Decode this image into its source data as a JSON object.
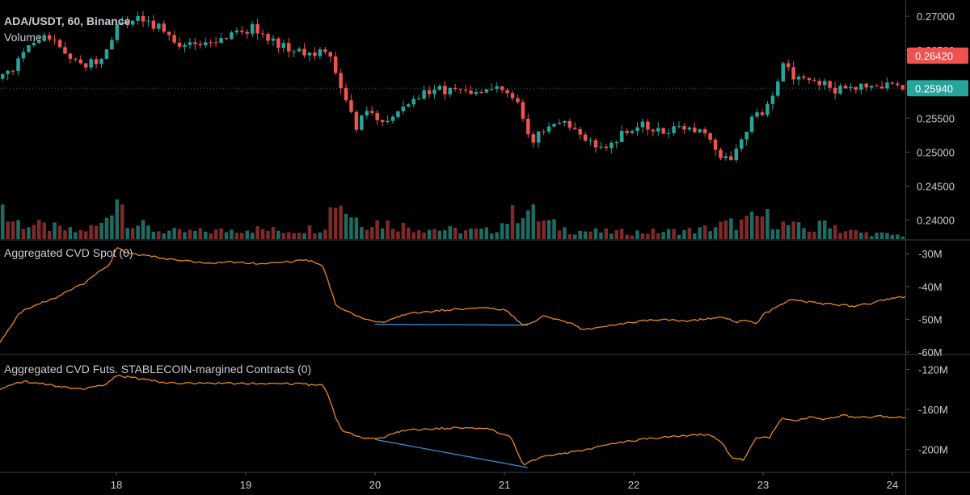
{
  "header": {
    "symbol": "ADA/USDT, 60, Binance",
    "volume_label": "Volume"
  },
  "colors": {
    "background": "#000000",
    "up": "#26a69a",
    "down": "#ef5350",
    "volume_up": "#1f6b63",
    "volume_down": "#7f2a2a",
    "cvd_line": "#e88a1a",
    "divergence_line": "#2f8fd8",
    "axis_text": "#c8cbd2",
    "grid": "#2a2e39"
  },
  "chart_data": [
    {
      "type": "candlestick",
      "title": "ADA/USDT, 60, Binance",
      "ylim": [
        0.2372,
        0.2712
      ],
      "y_ticks": [
        "0.27000",
        "0.26500",
        "0.26000",
        "0.25500",
        "0.25000",
        "0.24500",
        "0.24000"
      ],
      "y_tick_values": [
        0.27,
        0.265,
        0.26,
        0.255,
        0.25,
        0.245,
        0.24
      ],
      "x_ticks": [
        "18",
        "19",
        "20",
        "21",
        "22",
        "23",
        "24"
      ],
      "x_tick_values": [
        18,
        19,
        20,
        21,
        22,
        23,
        24
      ],
      "xlim": [
        17.1,
        24.1
      ],
      "price_labels": [
        {
          "text": "0.26420",
          "value": 0.2642,
          "color": "#ef5350"
        },
        {
          "text": "0.25940",
          "value": 0.2594,
          "color": "#26a69a"
        }
      ],
      "close_path": [
        [
          17.1,
          0.2608
        ],
        [
          17.2,
          0.262
        ],
        [
          17.3,
          0.2655
        ],
        [
          17.45,
          0.2672
        ],
        [
          17.6,
          0.2645
        ],
        [
          17.75,
          0.2628
        ],
        [
          17.9,
          0.264
        ],
        [
          18.0,
          0.2685
        ],
        [
          18.15,
          0.2695
        ],
        [
          18.3,
          0.2687
        ],
        [
          18.45,
          0.2665
        ],
        [
          18.6,
          0.2652
        ],
        [
          18.75,
          0.2658
        ],
        [
          18.9,
          0.2672
        ],
        [
          19.05,
          0.2683
        ],
        [
          19.2,
          0.2665
        ],
        [
          19.35,
          0.2651
        ],
        [
          19.5,
          0.2647
        ],
        [
          19.65,
          0.2642
        ],
        [
          19.72,
          0.2605
        ],
        [
          19.78,
          0.2575
        ],
        [
          19.85,
          0.2535
        ],
        [
          19.95,
          0.2565
        ],
        [
          20.05,
          0.2538
        ],
        [
          20.15,
          0.2558
        ],
        [
          20.3,
          0.2578
        ],
        [
          20.45,
          0.259
        ],
        [
          20.6,
          0.2593
        ],
        [
          20.8,
          0.259
        ],
        [
          20.95,
          0.259
        ],
        [
          21.1,
          0.2572
        ],
        [
          21.2,
          0.2515
        ],
        [
          21.3,
          0.2532
        ],
        [
          21.45,
          0.2541
        ],
        [
          21.6,
          0.2525
        ],
        [
          21.75,
          0.2502
        ],
        [
          21.9,
          0.2525
        ],
        [
          22.05,
          0.254
        ],
        [
          22.2,
          0.253
        ],
        [
          22.35,
          0.2535
        ],
        [
          22.5,
          0.253
        ],
        [
          22.6,
          0.2515
        ],
        [
          22.7,
          0.2485
        ],
        [
          22.8,
          0.2503
        ],
        [
          22.9,
          0.2545
        ],
        [
          23.05,
          0.257
        ],
        [
          23.15,
          0.2625
        ],
        [
          23.3,
          0.2605
        ],
        [
          23.45,
          0.2605
        ],
        [
          23.55,
          0.259
        ],
        [
          23.7,
          0.2595
        ],
        [
          23.85,
          0.2598
        ],
        [
          24.0,
          0.2597
        ],
        [
          24.1,
          0.2594
        ]
      ],
      "volume_profile": [
        [
          17.1,
          0.7
        ],
        [
          17.15,
          0.35
        ],
        [
          17.3,
          0.25
        ],
        [
          17.5,
          0.2
        ],
        [
          17.7,
          0.12
        ],
        [
          17.9,
          0.25
        ],
        [
          18.0,
          0.85
        ],
        [
          18.1,
          0.3
        ],
        [
          18.3,
          0.15
        ],
        [
          18.5,
          0.12
        ],
        [
          18.8,
          0.14
        ],
        [
          19.0,
          0.18
        ],
        [
          19.3,
          0.14
        ],
        [
          19.6,
          0.2
        ],
        [
          19.7,
          0.75
        ],
        [
          19.8,
          0.45
        ],
        [
          19.9,
          0.3
        ],
        [
          20.0,
          0.3
        ],
        [
          20.3,
          0.2
        ],
        [
          20.6,
          0.15
        ],
        [
          20.9,
          0.14
        ],
        [
          21.15,
          0.55
        ],
        [
          21.3,
          0.3
        ],
        [
          21.5,
          0.15
        ],
        [
          21.8,
          0.12
        ],
        [
          22.1,
          0.12
        ],
        [
          22.5,
          0.15
        ],
        [
          22.7,
          0.25
        ],
        [
          22.85,
          0.28
        ],
        [
          23.0,
          0.4
        ],
        [
          23.15,
          0.25
        ],
        [
          23.4,
          0.15
        ],
        [
          23.5,
          0.35
        ],
        [
          23.6,
          0.15
        ],
        [
          23.8,
          0.1
        ],
        [
          24.1,
          0.06
        ]
      ]
    },
    {
      "type": "line",
      "title": "Aggregated CVD Spot (0)",
      "y_ticks": [
        "-30M",
        "-40M",
        "-50M",
        "-60M"
      ],
      "y_tick_values": [
        -30,
        -40,
        -50,
        -60
      ],
      "ylim": [
        -60.5,
        -26
      ],
      "x": [
        17.1,
        17.15,
        17.25,
        17.35,
        17.5,
        17.65,
        17.75,
        17.85,
        17.95,
        18.0,
        18.1,
        18.3,
        18.5,
        18.7,
        18.9,
        19.1,
        19.3,
        19.5,
        19.6,
        19.65,
        19.7,
        19.8,
        19.9,
        20.0,
        20.1,
        20.2,
        20.3,
        20.45,
        20.6,
        20.8,
        21.0,
        21.15,
        21.2,
        21.3,
        21.4,
        21.5,
        21.6,
        21.75,
        21.9,
        22.05,
        22.2,
        22.4,
        22.55,
        22.7,
        22.8,
        22.85,
        22.95,
        23.0,
        23.1,
        23.2,
        23.4,
        23.55,
        23.7,
        23.85,
        24.0,
        24.1
      ],
      "values": [
        -57,
        -54,
        -48,
        -46,
        -44,
        -41,
        -39,
        -36,
        -33,
        -28,
        -30,
        -31,
        -32,
        -33,
        -32.5,
        -33,
        -32.5,
        -32,
        -34,
        -40,
        -46,
        -48,
        -49.5,
        -51,
        -50.5,
        -49,
        -48,
        -47.5,
        -47,
        -46.5,
        -47,
        -52,
        -51.5,
        -49,
        -50,
        -51,
        -53,
        -52.5,
        -51.5,
        -50.5,
        -50,
        -50.5,
        -50,
        -49.5,
        -51,
        -50,
        -51.5,
        -48.5,
        -46.5,
        -44,
        -45,
        -45.5,
        -46,
        -45,
        -43.5,
        -43.2
      ],
      "divergence_line": {
        "x": [
          20.0,
          21.18
        ],
        "y": [
          -51.5,
          -51.8
        ]
      }
    },
    {
      "type": "line",
      "title": "Aggregated CVD Futs. STABLECOIN-margined Contracts (0)",
      "y_ticks": [
        "-120M",
        "-160M",
        "-200M"
      ],
      "y_tick_values": [
        -120,
        -160,
        -200
      ],
      "ylim": [
        -222,
        -106
      ],
      "x": [
        17.1,
        17.2,
        17.3,
        17.5,
        17.7,
        17.9,
        18.0,
        18.1,
        18.3,
        18.5,
        18.8,
        19.0,
        19.3,
        19.6,
        19.65,
        19.7,
        19.75,
        19.8,
        19.9,
        20.0,
        20.1,
        20.2,
        20.3,
        20.5,
        20.7,
        20.9,
        21.05,
        21.15,
        21.2,
        21.3,
        21.5,
        21.7,
        21.9,
        22.1,
        22.3,
        22.5,
        22.6,
        22.7,
        22.75,
        22.85,
        22.95,
        23.05,
        23.15,
        23.25,
        23.35,
        23.5,
        23.6,
        23.75,
        23.9,
        24.0,
        24.1
      ],
      "values": [
        -140,
        -134,
        -132,
        -136,
        -140,
        -136,
        -126,
        -128,
        -132,
        -134,
        -134,
        -134,
        -134,
        -136,
        -150,
        -170,
        -182,
        -184,
        -188,
        -190,
        -186,
        -182,
        -180,
        -179,
        -178,
        -180,
        -188,
        -217,
        -212,
        -207,
        -203,
        -198,
        -193,
        -189,
        -187,
        -185,
        -186,
        -196,
        -208,
        -210,
        -188,
        -188,
        -168,
        -172,
        -168,
        -170,
        -166,
        -168,
        -167,
        -168,
        -168
      ],
      "divergence_line": {
        "x": [
          20.0,
          21.18
        ],
        "y": [
          -190,
          -218
        ]
      }
    }
  ]
}
